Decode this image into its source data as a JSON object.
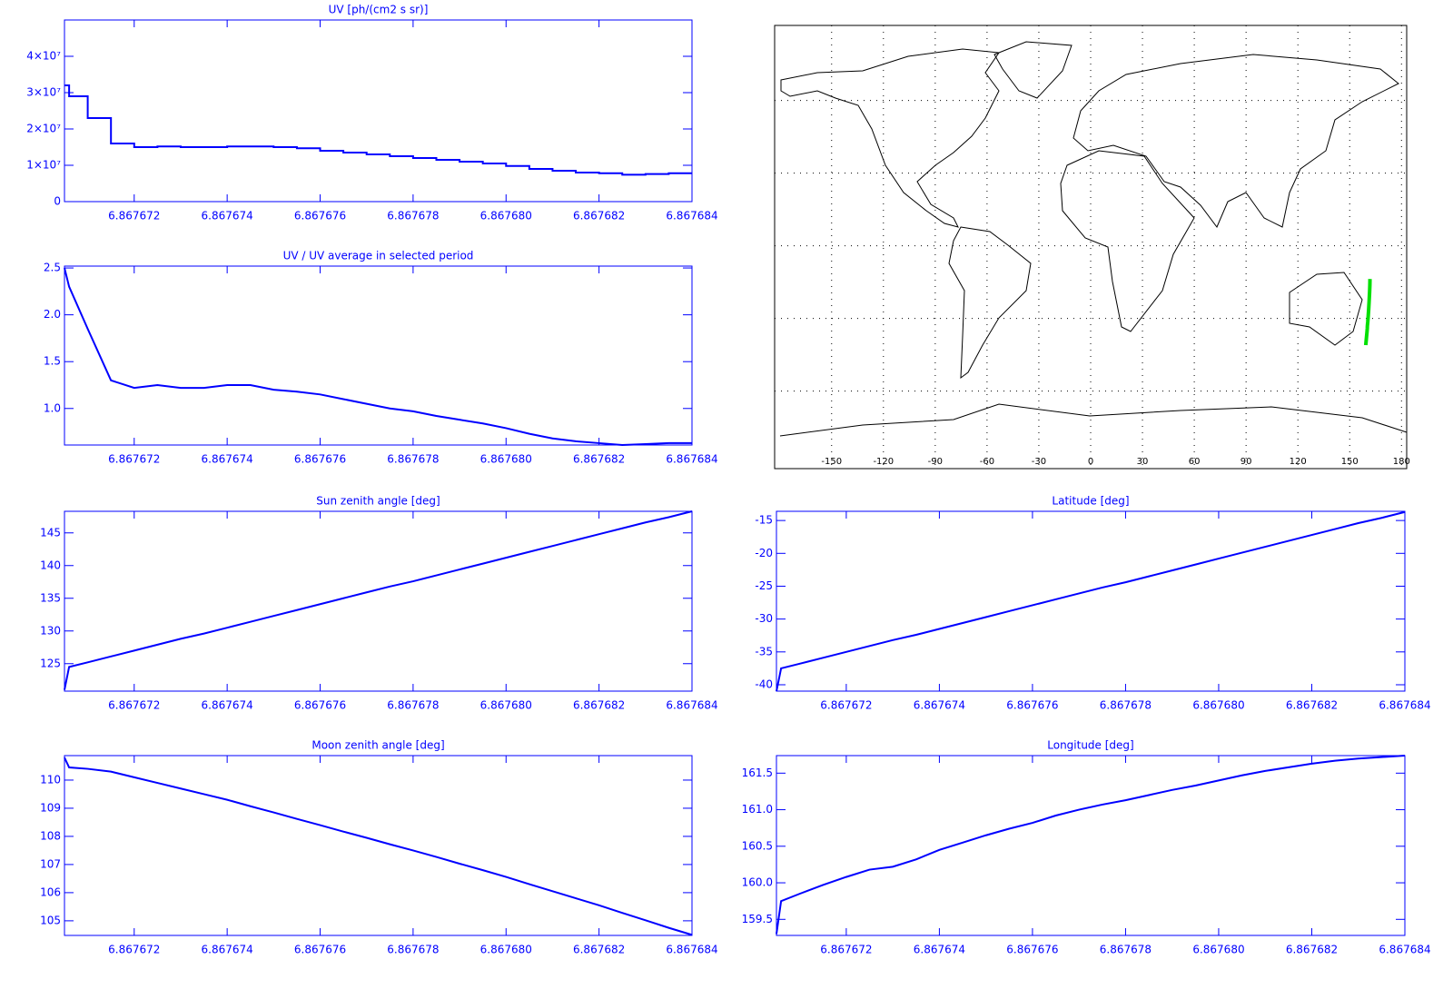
{
  "chart_data": [
    {
      "type": "line",
      "title": "UV [ph/(cm2 s sr)]",
      "step": true,
      "x": [
        6.8676705,
        6.8676706,
        6.867671,
        6.8676715,
        6.867672,
        6.8676725,
        6.867673,
        6.8676735,
        6.867674,
        6.8676745,
        6.867675,
        6.8676755,
        6.867676,
        6.8676765,
        6.867677,
        6.8676775,
        6.867678,
        6.8676785,
        6.867679,
        6.8676795,
        6.86768,
        6.8676805,
        6.867681,
        6.8676815,
        6.867682,
        6.8676825,
        6.867683,
        6.8676835,
        6.867684
      ],
      "series": [
        {
          "color": "#0000ff",
          "values": [
            32000000,
            29000000,
            23000000,
            16000000,
            15000000,
            15200000,
            15000000,
            15000000,
            15200000,
            15200000,
            15000000,
            14700000,
            14000000,
            13500000,
            13000000,
            12500000,
            12000000,
            11500000,
            11000000,
            10500000,
            9800000,
            9000000,
            8500000,
            8000000,
            7800000,
            7400000,
            7600000,
            7800000,
            7800000
          ]
        }
      ],
      "xlim": [
        6.8676705,
        6.867684
      ],
      "xticks": [
        6.867672,
        6.867674,
        6.867676,
        6.867678,
        {
          "value": 6.86768,
          "label": "6.867680"
        },
        6.867682,
        6.867684
      ],
      "ylim": [
        0,
        50000000
      ],
      "yticks": [
        0,
        {
          "value": 10000000,
          "label": "1×10⁷"
        },
        {
          "value": 20000000,
          "label": "2×10⁷"
        },
        {
          "value": 30000000,
          "label": "3×10⁷"
        },
        {
          "value": 40000000,
          "label": "4×10⁷"
        }
      ]
    },
    {
      "type": "line",
      "title": "UV / UV average in selected period",
      "x": [
        6.8676705,
        6.8676706,
        6.867671,
        6.8676715,
        6.867672,
        6.8676725,
        6.867673,
        6.8676735,
        6.867674,
        6.8676745,
        6.867675,
        6.8676755,
        6.867676,
        6.8676765,
        6.867677,
        6.8676775,
        6.867678,
        6.8676785,
        6.867679,
        6.8676795,
        6.86768,
        6.8676805,
        6.867681,
        6.8676815,
        6.867682,
        6.8676825,
        6.867683,
        6.8676835,
        6.867684
      ],
      "series": [
        {
          "color": "#0000ff",
          "values": [
            2.5,
            2.3,
            1.85,
            1.3,
            1.22,
            1.25,
            1.22,
            1.22,
            1.25,
            1.25,
            1.2,
            1.18,
            1.15,
            1.1,
            1.05,
            1.0,
            0.97,
            0.92,
            0.88,
            0.84,
            0.79,
            0.73,
            0.68,
            0.65,
            0.63,
            0.61,
            0.62,
            0.63,
            0.63
          ]
        }
      ],
      "xlim": [
        6.8676705,
        6.867684
      ],
      "xticks": [
        6.867672,
        6.867674,
        6.867676,
        6.867678,
        {
          "value": 6.86768,
          "label": "6.867680"
        },
        6.867682,
        6.867684
      ],
      "ylim": [
        0.61,
        2.52
      ],
      "yticks": [
        {
          "value": 1,
          "label": "1.0"
        },
        1.5,
        {
          "value": 2,
          "label": "2.0"
        },
        2.5
      ]
    },
    {
      "type": "map",
      "track_color": "#00e000",
      "xlim": [
        -183,
        183
      ],
      "ylim": [
        -92,
        91
      ],
      "xticks": [
        -150,
        -120,
        -90,
        -60,
        -30,
        0,
        30,
        60,
        90,
        120,
        150,
        180
      ],
      "yticks": [
        -60,
        -30,
        0,
        30,
        60
      ]
    },
    {
      "type": "line",
      "title": "Sun zenith angle [deg]",
      "x": [
        6.8676705,
        6.8676706,
        6.867671,
        6.8676715,
        6.867672,
        6.8676725,
        6.867673,
        6.8676735,
        6.867674,
        6.8676745,
        6.867675,
        6.8676755,
        6.867676,
        6.8676765,
        6.867677,
        6.8676775,
        6.867678,
        6.8676785,
        6.867679,
        6.8676795,
        6.86768,
        6.8676805,
        6.867681,
        6.8676815,
        6.867682,
        6.8676825,
        6.867683,
        6.8676835,
        6.867684
      ],
      "series": [
        {
          "color": "#0000ff",
          "values": [
            121,
            124.5,
            125.2,
            126.1,
            127.0,
            127.9,
            128.8,
            129.6,
            130.5,
            131.4,
            132.3,
            133.2,
            134.1,
            135.0,
            135.9,
            136.8,
            137.6,
            138.5,
            139.4,
            140.3,
            141.2,
            142.1,
            143.0,
            143.9,
            144.8,
            145.7,
            146.6,
            147.4,
            148.3
          ]
        }
      ],
      "xlim": [
        6.8676705,
        6.867684
      ],
      "xticks": [
        6.867672,
        6.867674,
        6.867676,
        6.867678,
        {
          "value": 6.86768,
          "label": "6.867680"
        },
        6.867682,
        6.867684
      ],
      "ylim": [
        120.8,
        148.3
      ],
      "yticks": [
        125,
        130,
        135,
        140,
        145
      ]
    },
    {
      "type": "line",
      "title": "Latitude [deg]",
      "x": [
        6.8676705,
        6.8676706,
        6.867671,
        6.8676715,
        6.867672,
        6.8676725,
        6.867673,
        6.8676735,
        6.867674,
        6.8676745,
        6.867675,
        6.8676755,
        6.867676,
        6.8676765,
        6.867677,
        6.8676775,
        6.867678,
        6.8676785,
        6.867679,
        6.8676795,
        6.86768,
        6.8676805,
        6.867681,
        6.8676815,
        6.867682,
        6.8676825,
        6.867683,
        6.8676835,
        6.867684
      ],
      "series": [
        {
          "color": "#0000ff",
          "values": [
            -41,
            -37.5,
            -36.8,
            -35.9,
            -35.0,
            -34.1,
            -33.2,
            -32.4,
            -31.5,
            -30.6,
            -29.7,
            -28.8,
            -27.9,
            -27.0,
            -26.1,
            -25.2,
            -24.4,
            -23.5,
            -22.6,
            -21.7,
            -20.8,
            -19.9,
            -19.0,
            -18.1,
            -17.2,
            -16.3,
            -15.4,
            -14.6,
            -13.7
          ]
        }
      ],
      "xlim": [
        6.8676705,
        6.867684
      ],
      "xticks": [
        6.867672,
        6.867674,
        6.867676,
        6.867678,
        {
          "value": 6.86768,
          "label": "6.867680"
        },
        6.867682,
        6.867684
      ],
      "ylim": [
        -40.97,
        -13.6
      ],
      "yticks": [
        -40,
        -35,
        -30,
        -25,
        -20,
        -15
      ]
    },
    {
      "type": "line",
      "title": "Moon zenith angle [deg]",
      "x": [
        6.8676705,
        6.8676706,
        6.867671,
        6.8676715,
        6.867672,
        6.8676725,
        6.867673,
        6.8676735,
        6.867674,
        6.8676745,
        6.867675,
        6.8676755,
        6.867676,
        6.8676765,
        6.867677,
        6.8676775,
        6.867678,
        6.8676785,
        6.867679,
        6.8676795,
        6.86768,
        6.8676805,
        6.867681,
        6.8676815,
        6.867682,
        6.8676825,
        6.867683,
        6.8676835,
        6.867684
      ],
      "series": [
        {
          "color": "#0000ff",
          "values": [
            110.8,
            110.45,
            110.4,
            110.3,
            110.1,
            109.9,
            109.7,
            109.5,
            109.3,
            109.07,
            108.85,
            108.62,
            108.4,
            108.17,
            107.95,
            107.72,
            107.5,
            107.27,
            107.03,
            106.8,
            106.56,
            106.3,
            106.05,
            105.8,
            105.55,
            105.28,
            105.02,
            104.75,
            104.5
          ]
        }
      ],
      "xlim": [
        6.8676705,
        6.867684
      ],
      "xticks": [
        6.867672,
        6.867674,
        6.867676,
        6.867678,
        {
          "value": 6.86768,
          "label": "6.867680"
        },
        6.867682,
        6.867684
      ],
      "ylim": [
        104.48,
        110.87
      ],
      "yticks": [
        105,
        106,
        107,
        108,
        109,
        110
      ]
    },
    {
      "type": "line",
      "title": "Longitude [deg]",
      "x": [
        6.8676705,
        6.8676706,
        6.867671,
        6.8676715,
        6.867672,
        6.8676725,
        6.867673,
        6.8676735,
        6.867674,
        6.8676745,
        6.867675,
        6.8676755,
        6.867676,
        6.8676765,
        6.867677,
        6.8676775,
        6.867678,
        6.8676785,
        6.867679,
        6.8676795,
        6.86768,
        6.8676805,
        6.867681,
        6.8676815,
        6.867682,
        6.8676825,
        6.867683,
        6.8676835,
        6.867684
      ],
      "series": [
        {
          "color": "#0000ff",
          "values": [
            159.3,
            159.75,
            159.85,
            159.97,
            160.08,
            160.18,
            160.22,
            160.32,
            160.45,
            160.55,
            160.65,
            160.74,
            160.82,
            160.92,
            161.0,
            161.07,
            161.13,
            161.2,
            161.27,
            161.33,
            161.4,
            161.47,
            161.53,
            161.58,
            161.63,
            161.67,
            161.7,
            161.72,
            161.74
          ]
        }
      ],
      "xlim": [
        6.8676705,
        6.867684
      ],
      "xticks": [
        6.867672,
        6.867674,
        6.867676,
        6.867678,
        {
          "value": 6.86768,
          "label": "6.867680"
        },
        6.867682,
        6.867684
      ],
      "ylim": [
        159.28,
        161.74
      ],
      "yticks": [
        159.5,
        {
          "value": 160,
          "label": "160.0"
        },
        160.5,
        {
          "value": 161,
          "label": "161.0"
        },
        161.5
      ]
    }
  ]
}
